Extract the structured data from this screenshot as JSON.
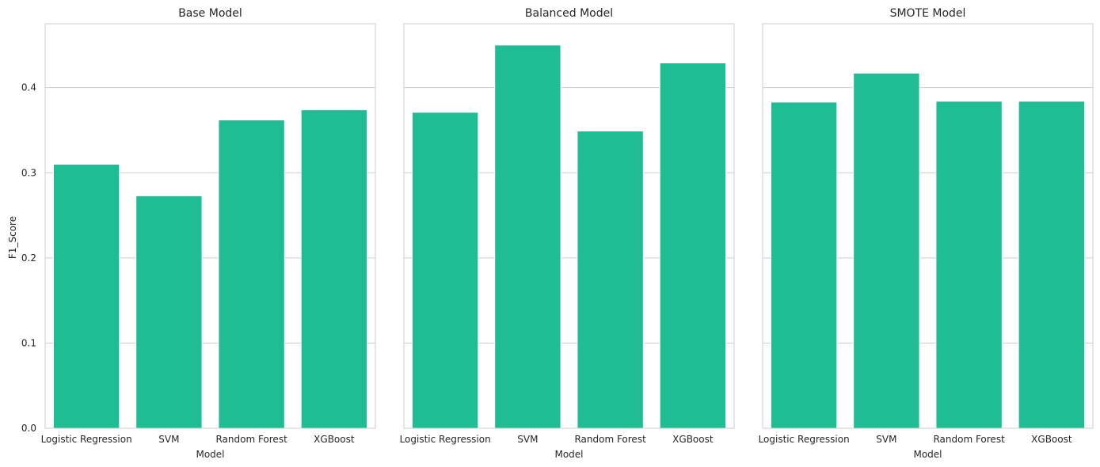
{
  "colors": {
    "bar": "#20bc94",
    "grid": "#cccccc",
    "text": "#262626"
  },
  "shared_y": {
    "label": "F1_Score",
    "ticks": [
      "0.0",
      "0.1",
      "0.2",
      "0.3",
      "0.4"
    ],
    "tick_values": [
      0.0,
      0.1,
      0.2,
      0.3,
      0.4
    ]
  },
  "chart_data": [
    {
      "type": "bar",
      "title": "Base Model",
      "xlabel": "Model",
      "ylabel": "F1_Score",
      "categories": [
        "Logistic Regression",
        "SVM",
        "Random Forest",
        "XGBoost"
      ],
      "values": [
        0.31,
        0.273,
        0.362,
        0.374
      ],
      "ylim": [
        0,
        0.475
      ],
      "grid": "horizontal"
    },
    {
      "type": "bar",
      "title": "Balanced Model",
      "xlabel": "Model",
      "ylabel": "",
      "categories": [
        "Logistic Regression",
        "SVM",
        "Random Forest",
        "XGBoost"
      ],
      "values": [
        0.371,
        0.45,
        0.349,
        0.429
      ],
      "ylim": [
        0,
        0.475
      ],
      "grid": "horizontal"
    },
    {
      "type": "bar",
      "title": "SMOTE Model",
      "xlabel": "Model",
      "ylabel": "",
      "categories": [
        "Logistic Regression",
        "SVM",
        "Random Forest",
        "XGBoost"
      ],
      "values": [
        0.383,
        0.417,
        0.384,
        0.384
      ],
      "ylim": [
        0,
        0.475
      ],
      "grid": "horizontal"
    }
  ]
}
